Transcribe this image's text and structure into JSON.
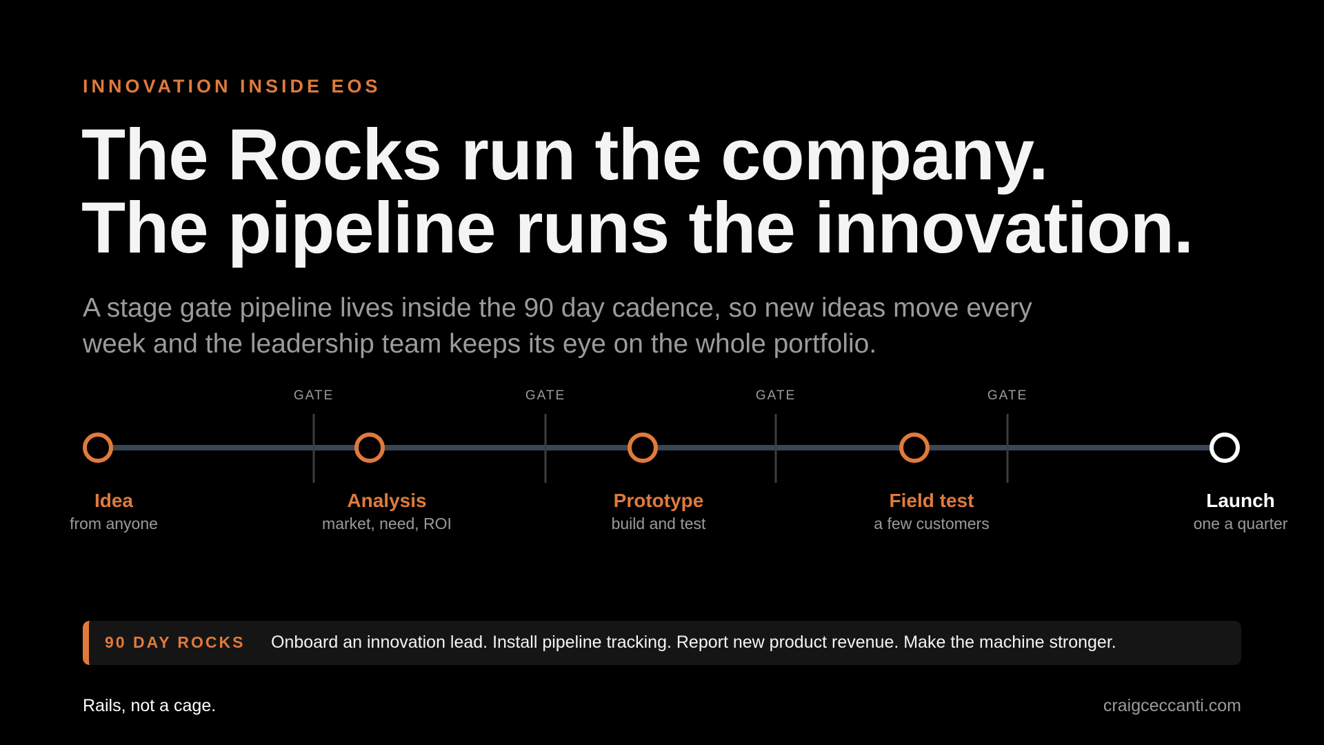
{
  "eyebrow": "INNOVATION INSIDE EOS",
  "title": [
    "The Rocks run the company.",
    "The pipeline runs the innovation."
  ],
  "subtitle": "A stage gate pipeline lives inside the 90 day cadence, so new ideas move every week and the leadership team keeps its eye on the whole portfolio.",
  "gates": [
    "GATE",
    "GATE",
    "GATE",
    "GATE"
  ],
  "stages": [
    {
      "label": "Idea",
      "sub": "from anyone"
    },
    {
      "label": "Analysis",
      "sub": "market, need, ROI"
    },
    {
      "label": "Prototype",
      "sub": "build and test"
    },
    {
      "label": "Field test",
      "sub": "a few customers"
    },
    {
      "label": "Launch",
      "sub": "one a quarter"
    }
  ],
  "rocks": {
    "label": "90 DAY ROCKS",
    "text": "Onboard an innovation lead. Install pipeline tracking. Report new product revenue. Make the machine stronger."
  },
  "footer": {
    "left": "Rails, not a cage.",
    "right": "craigceccanti.com"
  }
}
